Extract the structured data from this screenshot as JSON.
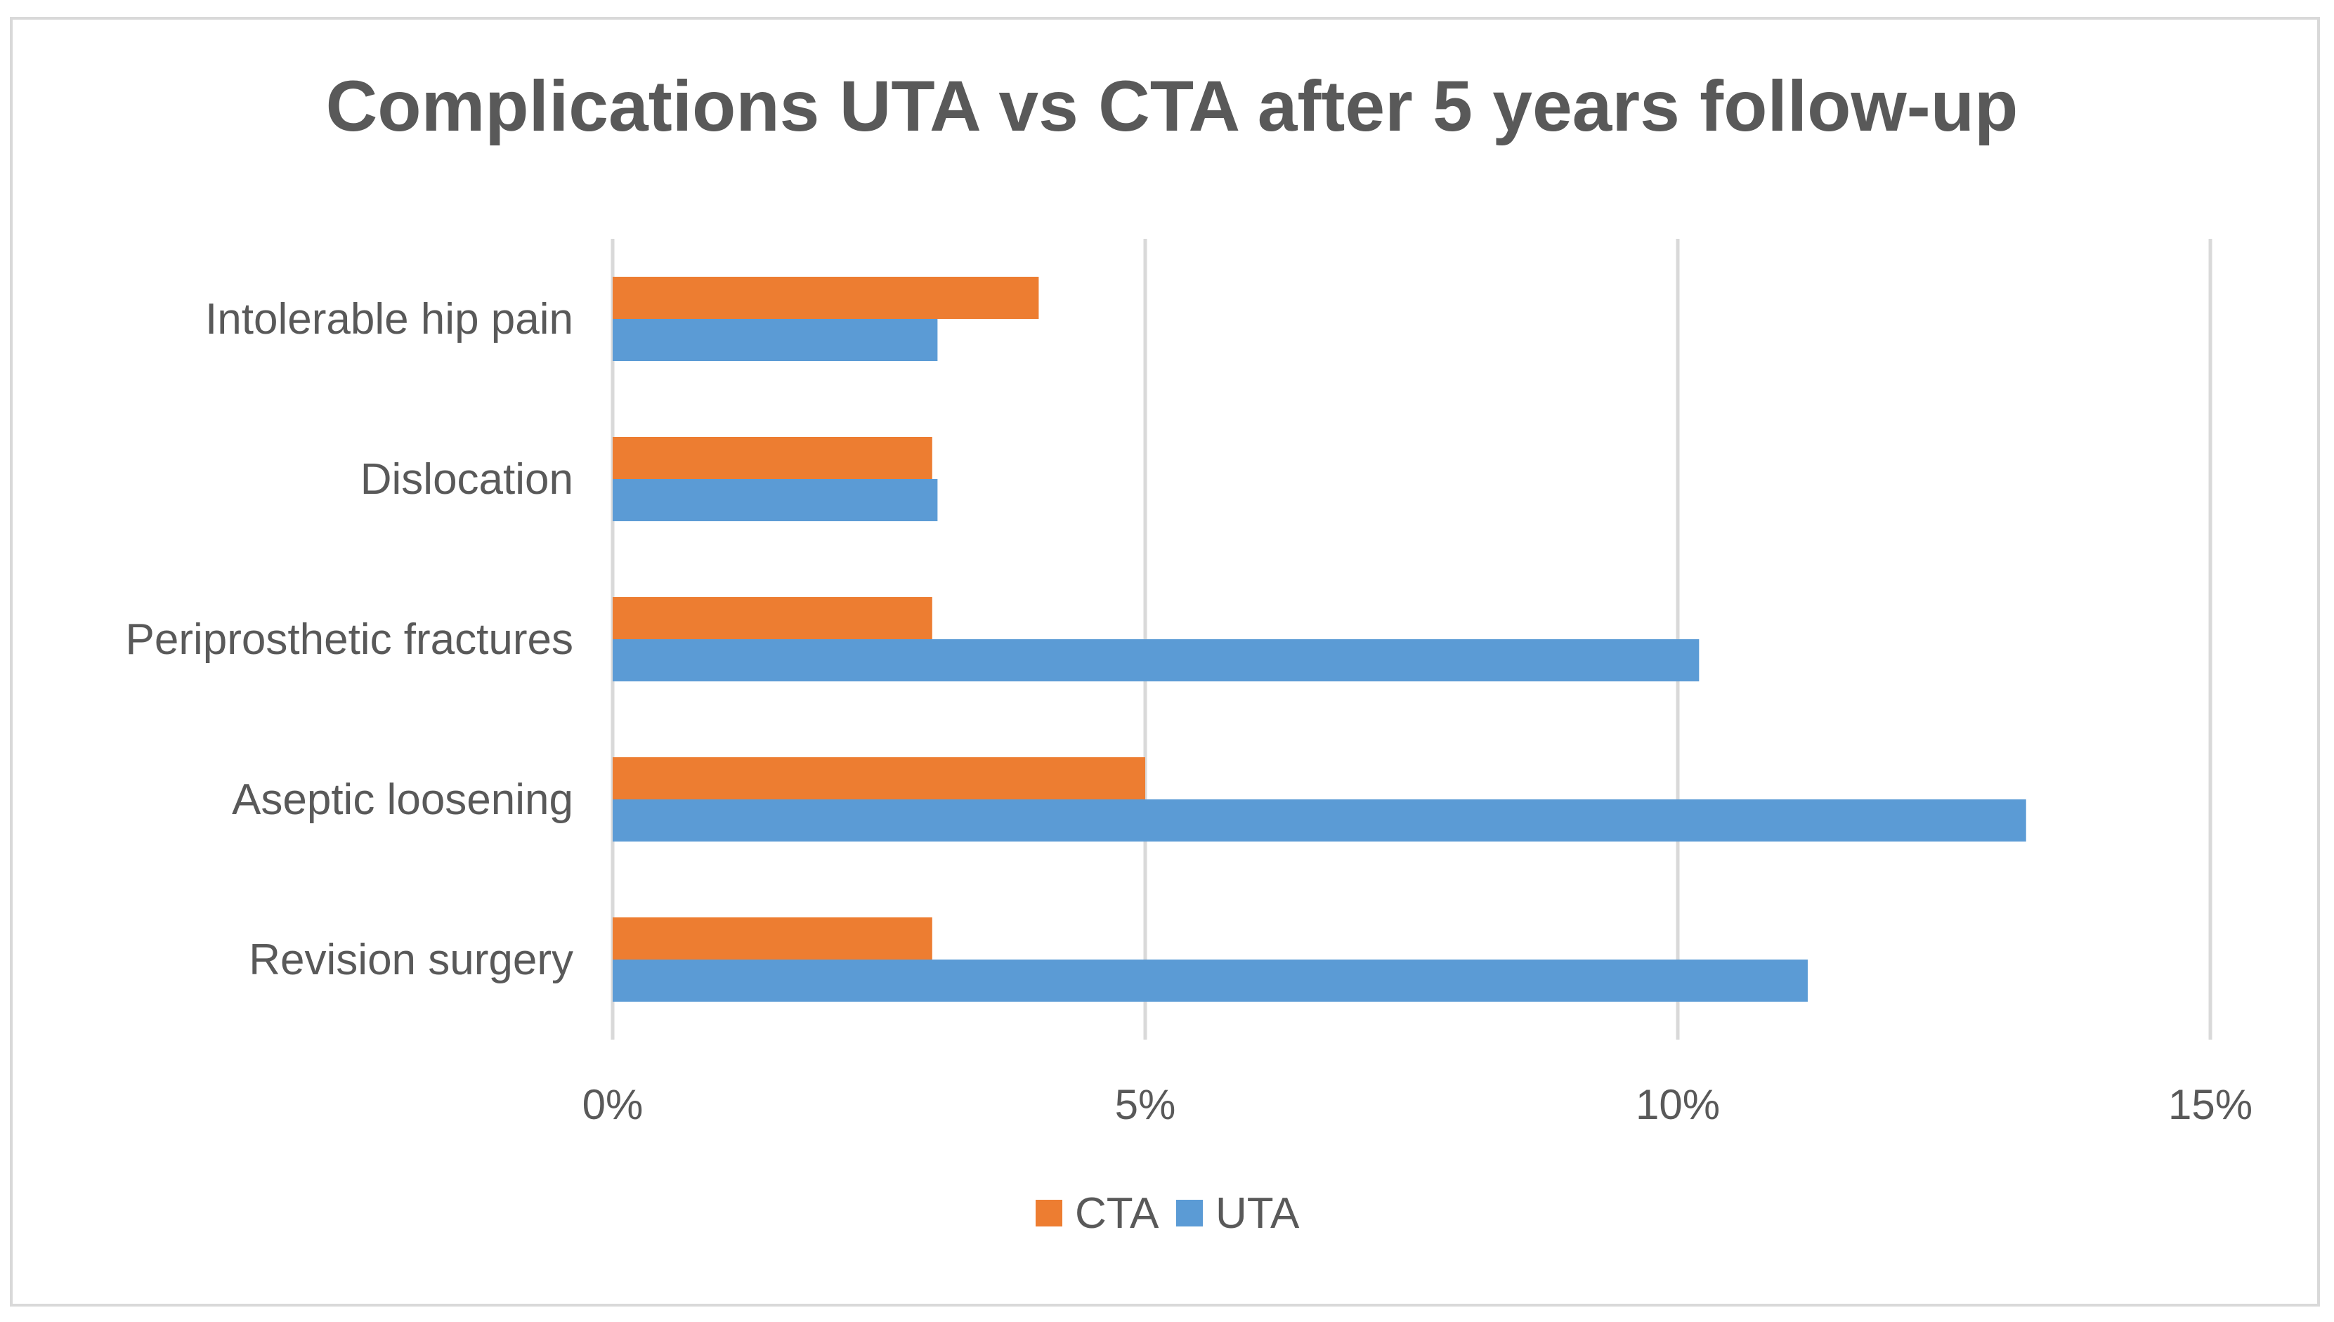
{
  "chart_data": {
    "type": "bar",
    "orientation": "horizontal",
    "title": "Complications UTA vs CTA after 5 years follow-up",
    "xlabel": "",
    "ylabel": "",
    "categories": [
      "Intolerable hip pain",
      "Dislocation",
      "Periprosthetic fractures",
      "Aseptic loosening",
      "Revision surgery"
    ],
    "series": [
      {
        "name": "CTA",
        "color": "#ed7d31",
        "values": [
          4.0,
          3.0,
          3.0,
          5.0,
          3.0
        ]
      },
      {
        "name": "UTA",
        "color": "#5b9bd5",
        "values": [
          3.05,
          3.05,
          10.2,
          13.27,
          11.22
        ]
      }
    ],
    "value_axis": {
      "min": 0,
      "max": 15,
      "ticks": [
        0,
        5,
        10,
        15
      ],
      "tick_labels": [
        "0%",
        "5%",
        "10%",
        "15%"
      ]
    },
    "grid": true,
    "gridline_color": "#d9d9d9",
    "legend_position": "bottom",
    "text_color": "#595959"
  }
}
